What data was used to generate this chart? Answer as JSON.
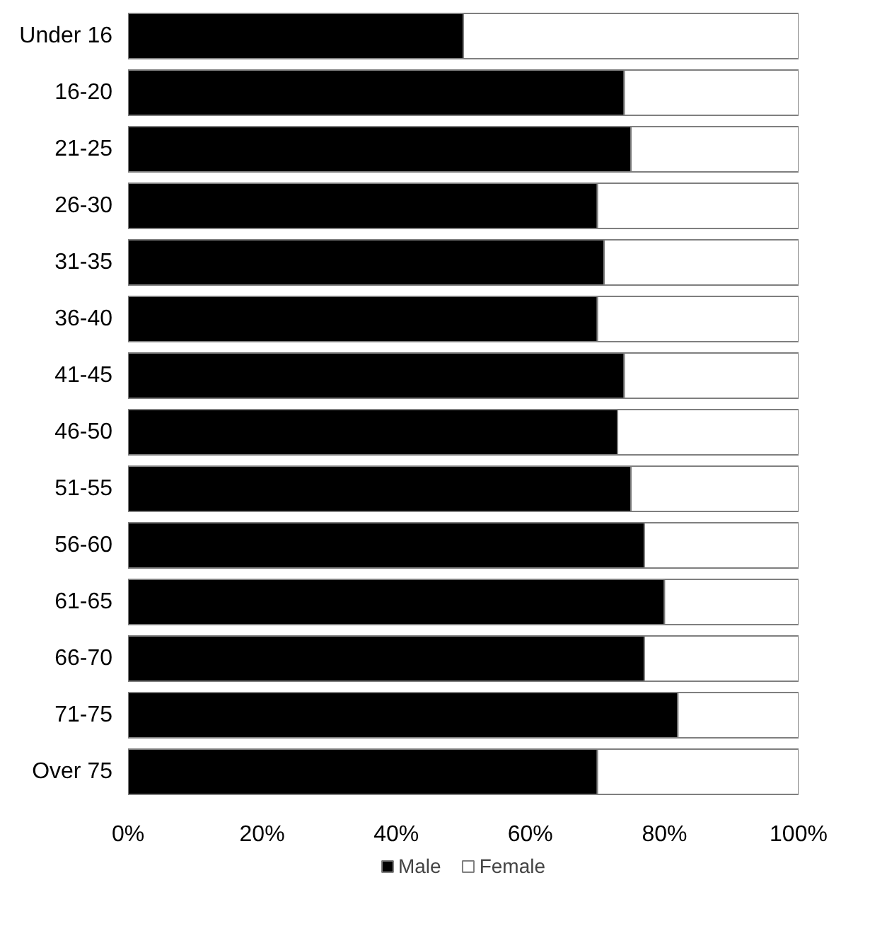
{
  "chart_data": {
    "type": "bar",
    "orientation": "horizontal",
    "stacked": true,
    "categories": [
      "Under 16",
      "16-20",
      "21-25",
      "26-30",
      "31-35",
      "36-40",
      "41-45",
      "46-50",
      "51-55",
      "56-60",
      "61-65",
      "66-70",
      "71-75",
      "Over 75"
    ],
    "series": [
      {
        "name": "Male",
        "color": "#000000",
        "values": [
          50,
          74,
          75,
          70,
          71,
          70,
          74,
          73,
          75,
          77,
          80,
          77,
          82,
          70
        ]
      },
      {
        "name": "Female",
        "color": "#ffffff",
        "values": [
          50,
          26,
          25,
          30,
          29,
          30,
          26,
          27,
          25,
          23,
          20,
          23,
          18,
          30
        ]
      }
    ],
    "xlim": [
      0,
      100
    ],
    "xticks": [
      {
        "value": 0,
        "label": "0%"
      },
      {
        "value": 20,
        "label": "20%"
      },
      {
        "value": 40,
        "label": "40%"
      },
      {
        "value": 60,
        "label": "60%"
      },
      {
        "value": 80,
        "label": "80%"
      },
      {
        "value": 100,
        "label": "100%"
      }
    ],
    "grid": false,
    "legend": "bottom"
  }
}
